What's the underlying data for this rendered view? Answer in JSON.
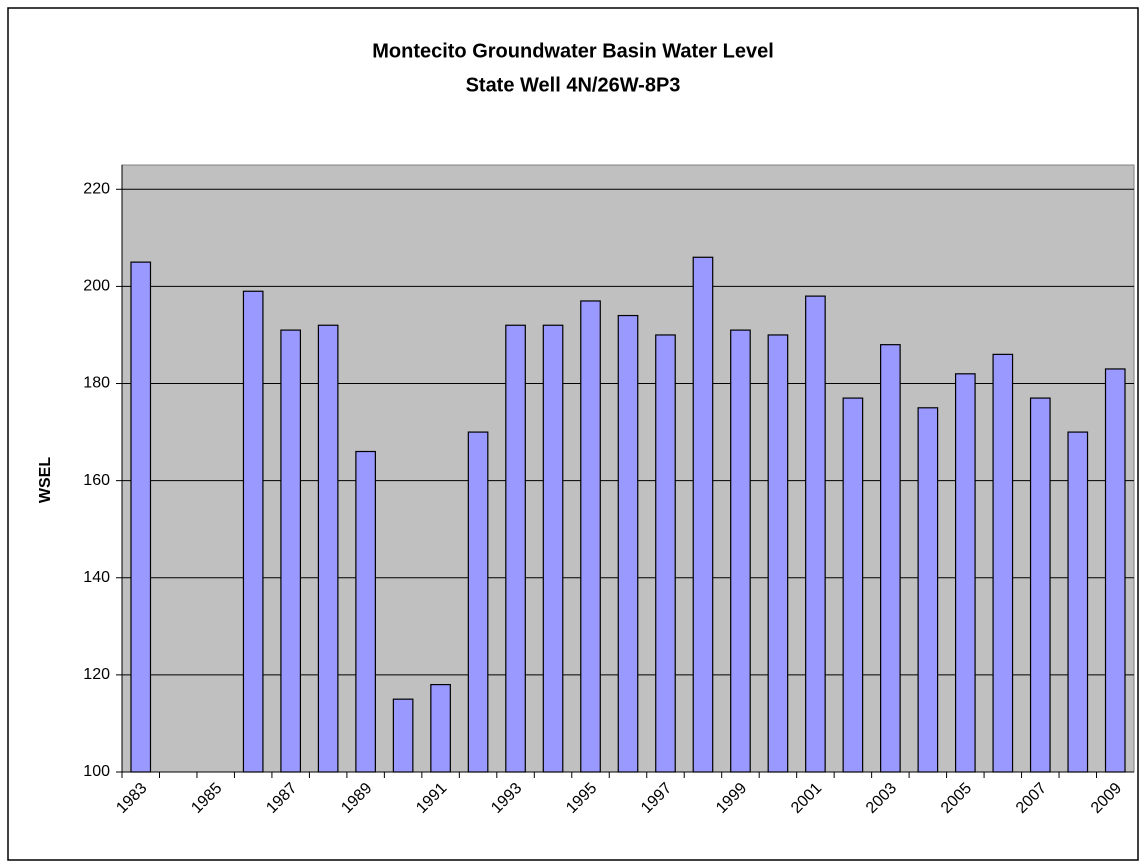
{
  "chart_data": {
    "type": "bar",
    "title": "Montecito Groundwater Basin Water Level",
    "subtitle": "State Well 4N/26W-8P3",
    "y_label": "WSEL",
    "categories": [
      "1983",
      null,
      "1985",
      null,
      "1987",
      null,
      "1989",
      null,
      "1991",
      null,
      "1993",
      null,
      "1995",
      null,
      "1997",
      null,
      "1999",
      null,
      "2001",
      null,
      "2003",
      null,
      "2005",
      null,
      "2007",
      null,
      "2009"
    ],
    "values": [
      205,
      null,
      null,
      199,
      191,
      192,
      166,
      115,
      118,
      170,
      192,
      192,
      197,
      194,
      190,
      206,
      191,
      190,
      198,
      177,
      188,
      175,
      182,
      186,
      177,
      170,
      183
    ],
    "color": "#9999ff",
    "ylim": [
      100,
      225
    ],
    "yticks": [
      100,
      120,
      140,
      160,
      180,
      200,
      220
    ],
    "grid": true
  }
}
